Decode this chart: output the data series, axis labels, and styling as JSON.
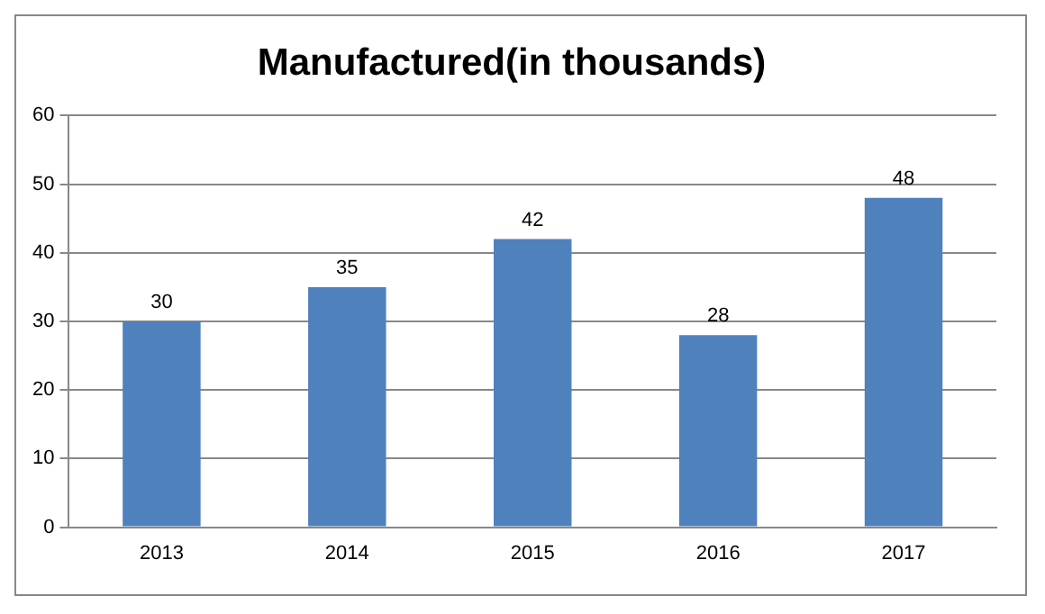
{
  "chart_data": {
    "type": "bar",
    "title": "Manufactured(in thousands)",
    "categories": [
      "2013",
      "2014",
      "2015",
      "2016",
      "2017"
    ],
    "values": [
      30,
      35,
      42,
      28,
      48
    ],
    "color": "#4f81bd",
    "ylim": [
      0,
      60
    ],
    "yticks": [
      0,
      10,
      20,
      30,
      40,
      50,
      60
    ],
    "grid": "y",
    "data_labels": true,
    "legend": false
  }
}
